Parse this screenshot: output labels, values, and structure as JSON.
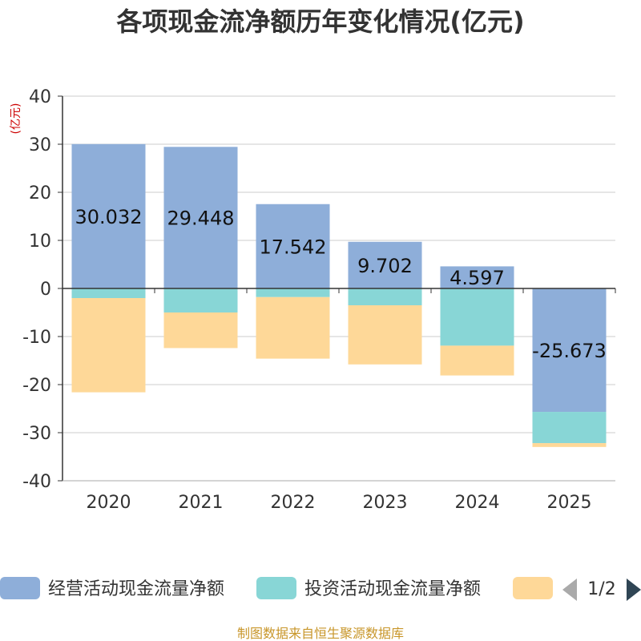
{
  "chart_data": {
    "type": "bar",
    "stacked": true,
    "title": "各项现金流净额历年变化情况(亿元)",
    "ylabel": "(亿元)",
    "categories": [
      "2020",
      "2021",
      "2022",
      "2023",
      "2024",
      "2025"
    ],
    "ylim": [
      -40,
      40
    ],
    "yticks": [
      40,
      30,
      20,
      10,
      0,
      -10,
      -20,
      -30,
      -40
    ],
    "series": [
      {
        "name": "经营活动现金流量净额",
        "color": "#8eaed9",
        "values": [
          30.032,
          29.448,
          17.542,
          9.702,
          4.597,
          -25.673
        ],
        "labels": [
          "30.032",
          "29.448",
          "17.542",
          "9.702",
          "4.597",
          "-25.673"
        ]
      },
      {
        "name": "投资活动现金流量净额",
        "color": "#88d6d6",
        "values": [
          -2.0,
          -5.0,
          -1.8,
          -3.5,
          -11.9,
          -6.5
        ]
      },
      {
        "name": "",
        "color": "#fed898",
        "values": [
          -19.6,
          -7.4,
          -12.8,
          -12.3,
          -6.2,
          -0.8
        ]
      }
    ],
    "legend": {
      "position": "bottom",
      "page": "1/2"
    },
    "grid": true
  },
  "footer": "制图数据来自恒生聚源数据库"
}
